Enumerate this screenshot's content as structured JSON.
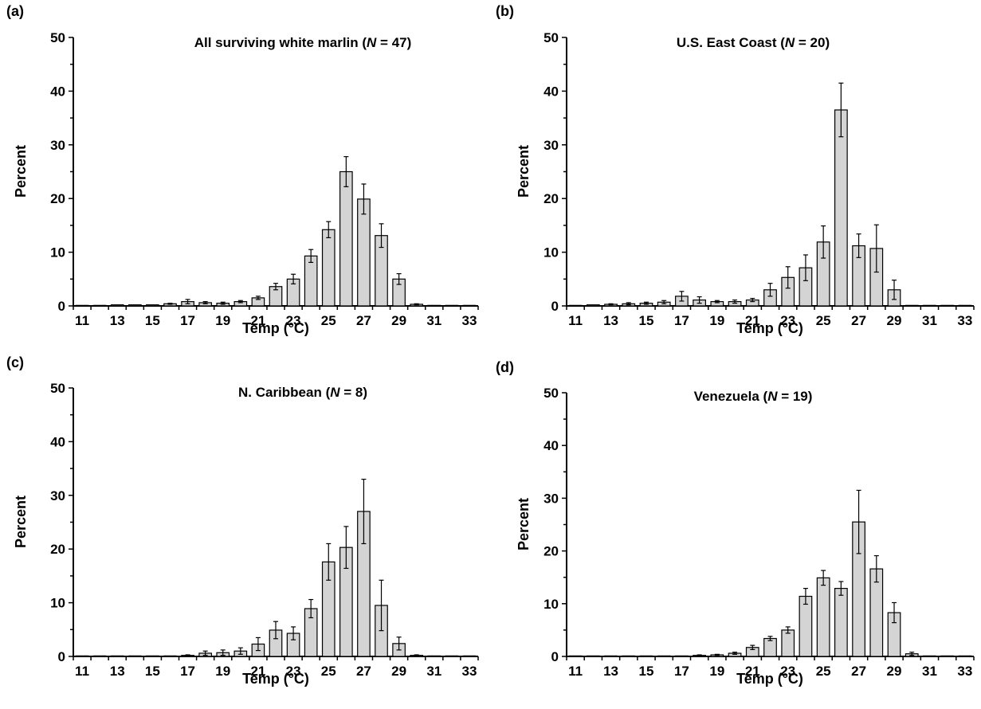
{
  "chart_data": [
    {
      "type": "bar",
      "panel_label": "(a)",
      "title_pre": "All surviving white marlin  (",
      "title_n": "N",
      "title_post": " = 47)",
      "xlabel": "Temp (°C)",
      "ylabel": "Percent",
      "ylim": [
        0,
        50
      ],
      "yticks": [
        "0",
        "10",
        "20",
        "30",
        "40",
        "50"
      ],
      "xtick_labels": [
        "11",
        "13",
        "15",
        "17",
        "19",
        "21",
        "23",
        "25",
        "27",
        "29",
        "31",
        "33"
      ],
      "categories": [
        11,
        12,
        13,
        14,
        15,
        16,
        17,
        18,
        19,
        20,
        21,
        22,
        23,
        24,
        25,
        26,
        27,
        28,
        29,
        30,
        31,
        32,
        33
      ],
      "values": [
        0.1,
        0.1,
        0.2,
        0.2,
        0.2,
        0.4,
        0.8,
        0.6,
        0.5,
        0.8,
        1.5,
        3.6,
        5.0,
        9.3,
        14.2,
        25.0,
        19.9,
        13.1,
        5.0,
        0.3,
        0.1,
        0.1,
        0.1
      ],
      "errors": [
        0,
        0,
        0,
        0,
        0,
        0.1,
        0.4,
        0.2,
        0.2,
        0.2,
        0.3,
        0.6,
        0.9,
        1.2,
        1.5,
        2.8,
        2.8,
        2.2,
        1.0,
        0.1,
        0,
        0,
        0
      ]
    },
    {
      "type": "bar",
      "panel_label": "(b)",
      "title_pre": "U.S. East Coast (",
      "title_n": "N",
      "title_post": " = 20)",
      "xlabel": "Temp (°C)",
      "ylabel": "Percent",
      "ylim": [
        0,
        50
      ],
      "yticks": [
        "0",
        "10",
        "20",
        "30",
        "40",
        "50"
      ],
      "xtick_labels": [
        "11",
        "13",
        "15",
        "17",
        "19",
        "21",
        "23",
        "25",
        "27",
        "29",
        "31",
        "33"
      ],
      "categories": [
        11,
        12,
        13,
        14,
        15,
        16,
        17,
        18,
        19,
        20,
        21,
        22,
        23,
        24,
        25,
        26,
        27,
        28,
        29,
        30,
        31,
        32,
        33
      ],
      "values": [
        0.1,
        0.2,
        0.3,
        0.4,
        0.5,
        0.7,
        1.8,
        1.1,
        0.8,
        0.8,
        1.1,
        3.0,
        5.3,
        7.1,
        11.9,
        36.5,
        11.2,
        10.7,
        3.0,
        0.1,
        0.1,
        0.1,
        0.1
      ],
      "errors": [
        0,
        0,
        0.1,
        0.2,
        0.2,
        0.3,
        0.9,
        0.6,
        0.2,
        0.3,
        0.3,
        1.2,
        2.0,
        2.4,
        3.0,
        5.0,
        2.2,
        4.4,
        1.8,
        0,
        0,
        0,
        0
      ]
    },
    {
      "type": "bar",
      "panel_label": "(c)",
      "title_pre": "N. Caribbean (",
      "title_n": "N",
      "title_post": " = 8)",
      "xlabel": "Temp (°C)",
      "ylabel": "Percent",
      "ylim": [
        0,
        50
      ],
      "yticks": [
        "0",
        "10",
        "20",
        "30",
        "40",
        "50"
      ],
      "xtick_labels": [
        "11",
        "13",
        "15",
        "17",
        "19",
        "21",
        "23",
        "25",
        "27",
        "29",
        "31",
        "33"
      ],
      "categories": [
        11,
        12,
        13,
        14,
        15,
        16,
        17,
        18,
        19,
        20,
        21,
        22,
        23,
        24,
        25,
        26,
        27,
        28,
        29,
        30,
        31,
        32,
        33
      ],
      "values": [
        0.1,
        0.1,
        0.1,
        0.1,
        0.1,
        0.1,
        0.2,
        0.6,
        0.7,
        1.0,
        2.3,
        4.9,
        4.3,
        8.9,
        17.6,
        20.3,
        27.0,
        9.5,
        2.4,
        0.2,
        0.1,
        0.1,
        0.1
      ],
      "errors": [
        0,
        0,
        0,
        0,
        0,
        0,
        0.1,
        0.4,
        0.5,
        0.6,
        1.2,
        1.6,
        1.2,
        1.7,
        3.4,
        3.9,
        6.0,
        4.7,
        1.2,
        0.1,
        0,
        0,
        0
      ]
    },
    {
      "type": "bar",
      "panel_label": "(d)",
      "title_pre": "Venezuela (",
      "title_n": "N",
      "title_post": " = 19)",
      "xlabel": "Temp (°C)",
      "ylabel": "Percent",
      "ylim": [
        0,
        50
      ],
      "yticks": [
        "0",
        "10",
        "20",
        "30",
        "40",
        "50"
      ],
      "xtick_labels": [
        "11",
        "13",
        "15",
        "17",
        "19",
        "21",
        "23",
        "25",
        "27",
        "29",
        "31",
        "33"
      ],
      "categories": [
        11,
        12,
        13,
        14,
        15,
        16,
        17,
        18,
        19,
        20,
        21,
        22,
        23,
        24,
        25,
        26,
        27,
        28,
        29,
        30,
        31,
        32,
        33
      ],
      "values": [
        0.1,
        0.1,
        0.1,
        0.1,
        0.1,
        0.1,
        0.1,
        0.2,
        0.3,
        0.6,
        1.7,
        3.4,
        5.0,
        11.4,
        14.9,
        12.9,
        25.5,
        16.6,
        8.3,
        0.5,
        0.1,
        0.1,
        0.1
      ],
      "errors": [
        0,
        0,
        0,
        0,
        0,
        0,
        0,
        0.1,
        0.1,
        0.2,
        0.4,
        0.4,
        0.6,
        1.5,
        1.4,
        1.3,
        6.0,
        2.5,
        1.9,
        0.3,
        0,
        0,
        0
      ]
    }
  ]
}
